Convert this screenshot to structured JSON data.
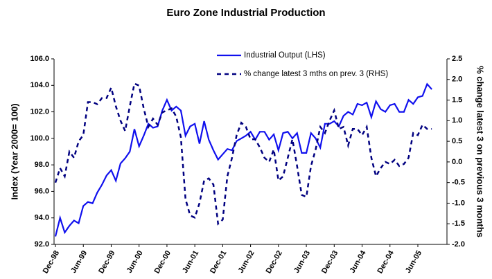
{
  "chart_data": {
    "type": "line",
    "title": "Euro Zone Industrial Production",
    "y_label": "Index (Year 2000= 100)",
    "y2_label": "% change latest 3 on previous 3 months",
    "categories": [
      "Dec-98",
      null,
      null,
      null,
      null,
      null,
      "Jun-99",
      null,
      null,
      null,
      null,
      null,
      "Dec-99",
      null,
      null,
      null,
      null,
      null,
      "Jun-00",
      null,
      null,
      null,
      null,
      null,
      "Dec-00",
      null,
      null,
      null,
      null,
      null,
      "Jun-01",
      null,
      null,
      null,
      null,
      null,
      "Dec-01",
      null,
      null,
      null,
      null,
      null,
      "Jun-02",
      null,
      null,
      null,
      null,
      null,
      "Dec-02",
      null,
      null,
      null,
      null,
      null,
      "Jun-03",
      null,
      null,
      null,
      null,
      null,
      "Dec-03",
      null,
      null,
      null,
      null,
      null,
      "Jun-04",
      null,
      null,
      null,
      null,
      null,
      "Dec-04",
      null,
      null,
      null,
      null,
      null,
      "Jun-05",
      null,
      null,
      null
    ],
    "series": [
      {
        "name": "Industrial Output (LHS)",
        "color": "#1010ee",
        "dashed": false,
        "values": [
          92.6,
          94.0,
          92.9,
          93.4,
          93.8,
          93.6,
          94.9,
          95.2,
          95.1,
          95.9,
          96.5,
          97.2,
          97.6,
          96.8,
          98.1,
          98.5,
          99.0,
          100.7,
          99.4,
          100.2,
          101.1,
          100.8,
          100.9,
          102.1,
          102.9,
          102.1,
          102.4,
          102.1,
          100.2,
          100.9,
          101.1,
          99.6,
          101.3,
          99.9,
          99.1,
          98.4,
          98.8,
          99.2,
          99.1,
          99.8,
          100.0,
          100.2,
          100.5,
          99.9,
          100.5,
          100.5,
          99.9,
          100.3,
          99.1,
          100.4,
          100.5,
          100.0,
          100.4,
          98.9,
          98.9,
          100.4,
          100.0,
          99.3,
          101.1,
          101.1,
          101.3,
          100.9,
          101.7,
          102.0,
          101.8,
          102.6,
          102.5,
          102.7,
          101.6,
          102.8,
          102.2,
          102.0,
          102.5,
          102.6,
          102.0,
          102.0,
          102.9,
          102.6,
          103.1,
          103.2,
          104.1,
          103.7
        ]
      },
      {
        "name": "% change latest 3 mths on prev. 3 (RHS)",
        "color": "#000080",
        "dashed": true,
        "axis": "y2",
        "values": [
          -0.5,
          -0.15,
          -0.35,
          0.25,
          0.1,
          0.5,
          0.65,
          1.45,
          1.45,
          1.4,
          1.55,
          1.55,
          1.8,
          1.35,
          1.0,
          0.75,
          1.35,
          1.9,
          1.85,
          1.3,
          0.85,
          1.05,
          0.9,
          1.2,
          1.25,
          1.3,
          1.1,
          0.6,
          -0.9,
          -1.3,
          -1.35,
          -1.0,
          -0.45,
          -0.4,
          -0.55,
          -1.5,
          -1.4,
          -0.35,
          0.1,
          0.65,
          0.95,
          0.85,
          0.55,
          0.55,
          0.35,
          0.1,
          0.0,
          0.3,
          -0.45,
          -0.35,
          0.1,
          0.55,
          -0.1,
          -0.8,
          -0.85,
          -0.1,
          0.3,
          0.85,
          0.7,
          1.0,
          1.25,
          0.8,
          0.85,
          0.4,
          0.8,
          0.8,
          0.65,
          0.85,
          0.1,
          -0.35,
          -0.15,
          0.0,
          -0.05,
          0.05,
          -0.1,
          -0.05,
          0.1,
          0.7,
          0.65,
          0.9,
          0.8,
          0.8
        ]
      }
    ],
    "ylim": [
      92,
      106
    ],
    "yticks": [
      {
        "value": 92,
        "label": "92.0"
      },
      {
        "value": 94,
        "label": "94.0"
      },
      {
        "value": 96,
        "label": "96.0"
      },
      {
        "value": 98,
        "label": "98.0"
      },
      {
        "value": 100,
        "label": "100.0"
      },
      {
        "value": 102,
        "label": "102.0"
      },
      {
        "value": 104,
        "label": "104.0"
      },
      {
        "value": 106,
        "label": "106.0"
      }
    ],
    "y2lim": [
      -2,
      2.5
    ],
    "y2ticks": [
      {
        "value": -2,
        "label": "-2.0"
      },
      -1.5,
      {
        "value": -1,
        "label": "-1.0"
      },
      -0.5,
      {
        "value": 0,
        "label": "0.0"
      },
      0.5,
      {
        "value": 1,
        "label": "1.0"
      },
      1.5,
      {
        "value": 2,
        "label": "2.0"
      },
      2.5
    ],
    "grid": false
  }
}
